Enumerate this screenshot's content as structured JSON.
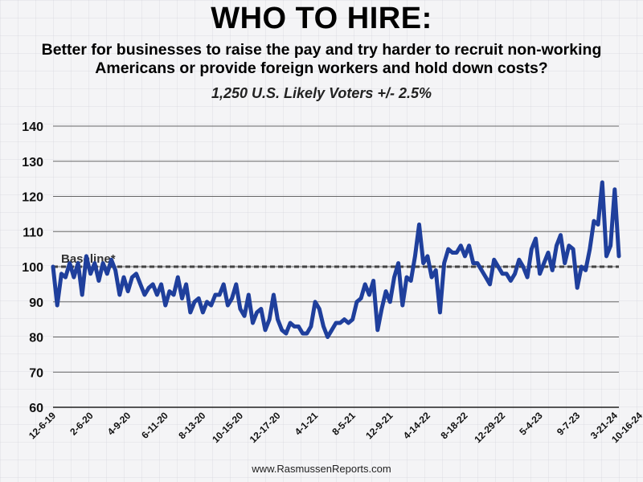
{
  "chart_data": {
    "type": "line",
    "title": "WHO TO HIRE:",
    "subtitle": "Better for businesses to raise the pay and try harder to recruit non-working Americans or provide foreign workers and hold down costs?",
    "sample": "1,250 U.S. Likely Voters +/- 2.5%",
    "ylim": [
      60,
      140
    ],
    "yticks": [
      60,
      70,
      80,
      90,
      100,
      110,
      120,
      130,
      140
    ],
    "grid": true,
    "baseline": {
      "value": 100,
      "label": "Baseline*"
    },
    "xticks": [
      {
        "label": "12-6-19",
        "index": 0
      },
      {
        "label": "2-6-20",
        "index": 9
      },
      {
        "label": "4-9-20",
        "index": 18
      },
      {
        "label": "6-11-20",
        "index": 27
      },
      {
        "label": "8-13-20",
        "index": 36
      },
      {
        "label": "10-15-20",
        "index": 45
      },
      {
        "label": "12-17-20",
        "index": 54
      },
      {
        "label": "4-1-21",
        "index": 63
      },
      {
        "label": "8-5-21",
        "index": 72
      },
      {
        "label": "12-9-21",
        "index": 81
      },
      {
        "label": "4-14-22",
        "index": 90
      },
      {
        "label": "8-18-22",
        "index": 99
      },
      {
        "label": "12-29-22",
        "index": 108
      },
      {
        "label": "5-4-23",
        "index": 117
      },
      {
        "label": "9-7-23",
        "index": 126
      },
      {
        "label": "3-21-24",
        "index": 135
      },
      {
        "label": "10-16-24",
        "index": 141
      }
    ],
    "series": [
      {
        "color": "#1f3f9c",
        "values": [
          100,
          89,
          98,
          97,
          101,
          97,
          101,
          92,
          103,
          98,
          101,
          96,
          101,
          98,
          102,
          99,
          92,
          97,
          93,
          97,
          98,
          95,
          92,
          94,
          95,
          92,
          95,
          89,
          93,
          92,
          97,
          91,
          95,
          87,
          90,
          91,
          87,
          90,
          89,
          92,
          92,
          95,
          89,
          91,
          95,
          88,
          86,
          92,
          84,
          87,
          88,
          82,
          85,
          92,
          85,
          82,
          81,
          84,
          83,
          83,
          81,
          81,
          83,
          90,
          88,
          83,
          80,
          82,
          84,
          84,
          85,
          84,
          85,
          90,
          91,
          95,
          92,
          96,
          82,
          88,
          93,
          90,
          97,
          101,
          89,
          97,
          96,
          103,
          112,
          101,
          103,
          97,
          99,
          87,
          101,
          105,
          104,
          104,
          106,
          103,
          106,
          101,
          101,
          99,
          97,
          95,
          102,
          100,
          98,
          98,
          96,
          98,
          102,
          100,
          97,
          105,
          108,
          98,
          101,
          104,
          99,
          106,
          109,
          101,
          106,
          105,
          94,
          100,
          99,
          105,
          113,
          112,
          124,
          103,
          106,
          122,
          103
        ]
      }
    ]
  },
  "footer": "www.RasmussenReports.com"
}
